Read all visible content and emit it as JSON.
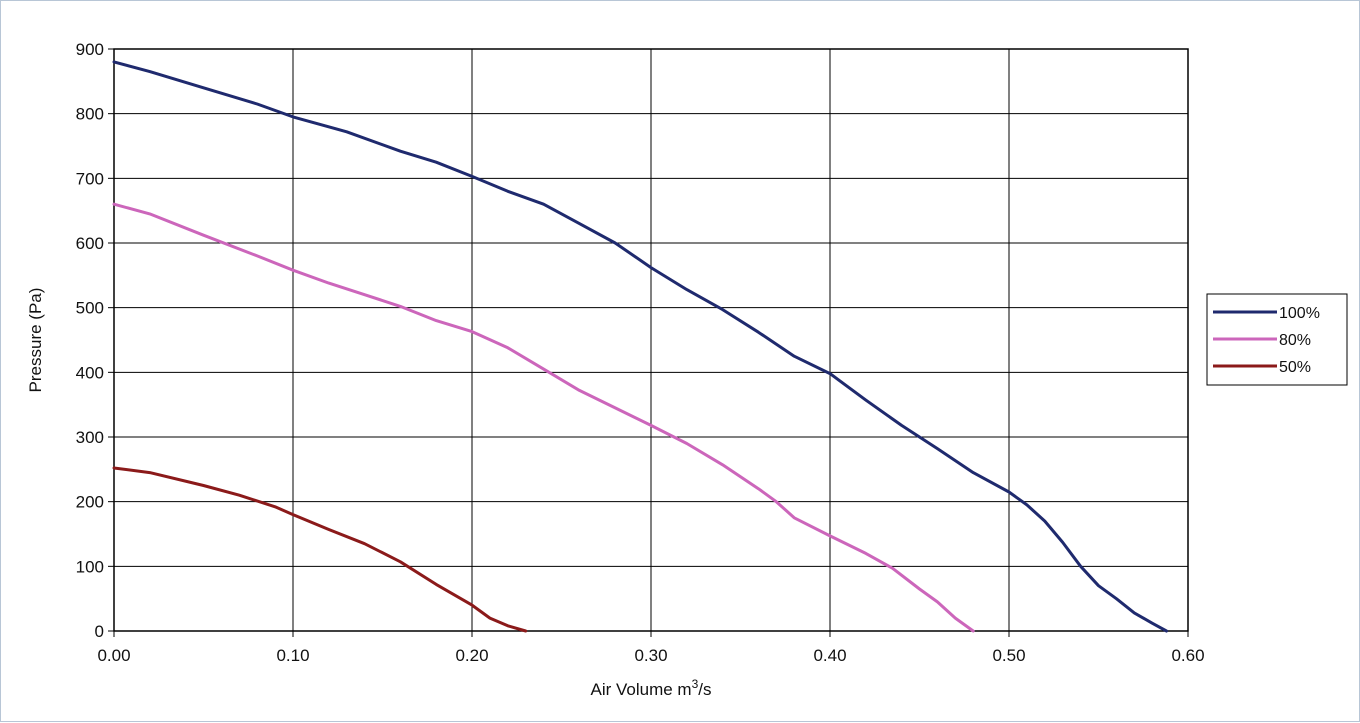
{
  "chart_data": {
    "type": "line",
    "xlabel": "Air Volume m",
    "xlabel_sup": "3",
    "xlabel_suffix": "/s",
    "ylabel": "Pressure (Pa)",
    "xlim": [
      0,
      0.6
    ],
    "ylim": [
      0,
      900
    ],
    "x_ticks": [
      "0.00",
      "0.10",
      "0.20",
      "0.30",
      "0.40",
      "0.50",
      "0.60"
    ],
    "y_ticks": [
      "0",
      "100",
      "200",
      "300",
      "400",
      "500",
      "600",
      "700",
      "800",
      "900"
    ],
    "grid": true,
    "legend_position": "right",
    "series": [
      {
        "name": "100%",
        "color": "#1f2a6e",
        "points": [
          [
            0.0,
            880
          ],
          [
            0.02,
            865
          ],
          [
            0.05,
            840
          ],
          [
            0.08,
            815
          ],
          [
            0.1,
            795
          ],
          [
            0.13,
            772
          ],
          [
            0.16,
            742
          ],
          [
            0.18,
            725
          ],
          [
            0.2,
            703
          ],
          [
            0.22,
            680
          ],
          [
            0.24,
            660
          ],
          [
            0.26,
            630
          ],
          [
            0.28,
            600
          ],
          [
            0.3,
            562
          ],
          [
            0.32,
            528
          ],
          [
            0.34,
            497
          ],
          [
            0.36,
            462
          ],
          [
            0.38,
            425
          ],
          [
            0.4,
            398
          ],
          [
            0.42,
            357
          ],
          [
            0.44,
            318
          ],
          [
            0.46,
            282
          ],
          [
            0.48,
            245
          ],
          [
            0.5,
            215
          ],
          [
            0.51,
            195
          ],
          [
            0.52,
            170
          ],
          [
            0.53,
            137
          ],
          [
            0.54,
            100
          ],
          [
            0.55,
            70
          ],
          [
            0.56,
            50
          ],
          [
            0.57,
            28
          ],
          [
            0.58,
            12
          ],
          [
            0.588,
            0
          ]
        ]
      },
      {
        "name": "80%",
        "color": "#cc66bb",
        "points": [
          [
            0.0,
            660
          ],
          [
            0.02,
            645
          ],
          [
            0.05,
            612
          ],
          [
            0.08,
            580
          ],
          [
            0.1,
            558
          ],
          [
            0.12,
            538
          ],
          [
            0.14,
            520
          ],
          [
            0.16,
            502
          ],
          [
            0.18,
            480
          ],
          [
            0.2,
            463
          ],
          [
            0.22,
            438
          ],
          [
            0.24,
            405
          ],
          [
            0.26,
            372
          ],
          [
            0.28,
            345
          ],
          [
            0.3,
            318
          ],
          [
            0.32,
            290
          ],
          [
            0.34,
            257
          ],
          [
            0.36,
            220
          ],
          [
            0.37,
            200
          ],
          [
            0.38,
            175
          ],
          [
            0.4,
            147
          ],
          [
            0.42,
            120
          ],
          [
            0.435,
            97
          ],
          [
            0.45,
            65
          ],
          [
            0.46,
            45
          ],
          [
            0.47,
            20
          ],
          [
            0.48,
            0
          ]
        ]
      },
      {
        "name": "50%",
        "color": "#8b1a1a",
        "points": [
          [
            0.0,
            252
          ],
          [
            0.02,
            245
          ],
          [
            0.05,
            225
          ],
          [
            0.07,
            210
          ],
          [
            0.09,
            192
          ],
          [
            0.1,
            180
          ],
          [
            0.12,
            157
          ],
          [
            0.14,
            135
          ],
          [
            0.16,
            107
          ],
          [
            0.18,
            72
          ],
          [
            0.2,
            40
          ],
          [
            0.21,
            20
          ],
          [
            0.22,
            8
          ],
          [
            0.23,
            0
          ]
        ]
      }
    ]
  }
}
